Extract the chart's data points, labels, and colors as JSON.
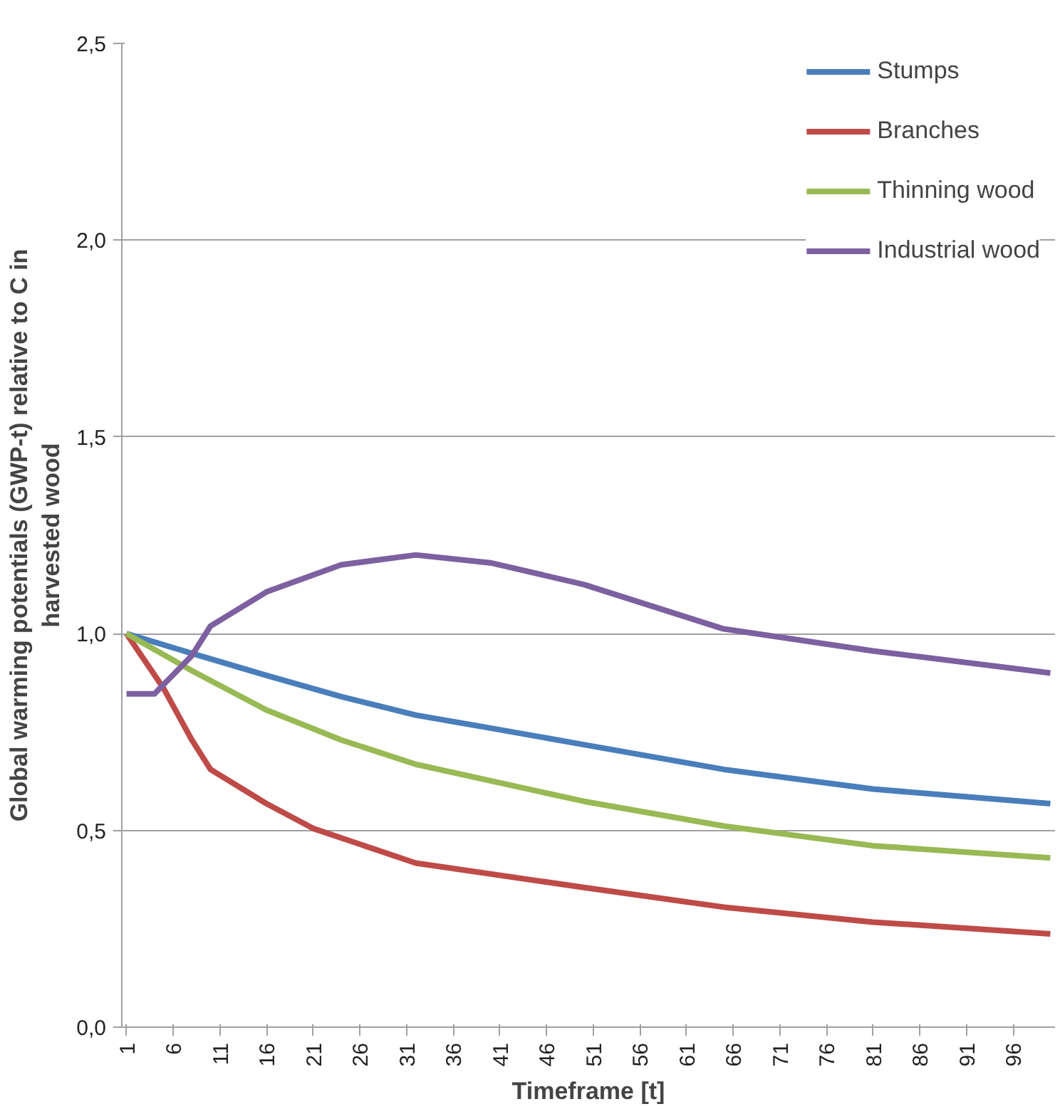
{
  "chart_data": {
    "type": "line",
    "xlabel": "Timeframe [t]",
    "ylabel": "Global warming potentials (GWP-t) relative to C in harvested wood",
    "xlim": [
      0.5,
      100.5
    ],
    "xticks": [
      1,
      6,
      11,
      16,
      21,
      26,
      31,
      36,
      41,
      46,
      51,
      56,
      61,
      66,
      71,
      76,
      81,
      86,
      91,
      96
    ],
    "ylim": [
      0,
      2.5
    ],
    "yticks": [
      {
        "value": 0,
        "label": "0,0"
      },
      {
        "value": 0.5,
        "label": "0,5"
      },
      {
        "value": 1,
        "label": "1,0"
      },
      {
        "value": 1.5,
        "label": "1,5"
      },
      {
        "value": 2,
        "label": "2,0"
      },
      {
        "value": 2.5,
        "label": "2,5"
      }
    ],
    "grid": "y",
    "legend": "top right",
    "line_style": "solid",
    "marker": "none",
    "series": [
      {
        "name": "Stumps",
        "color": "#4a7ebb",
        "x": [
          1,
          8,
          16,
          24,
          32,
          40,
          50,
          65,
          81,
          100
        ],
        "values": [
          1.0,
          0.95,
          0.894,
          0.84,
          0.793,
          0.76,
          0.718,
          0.655,
          0.605,
          0.568
        ]
      },
      {
        "name": "Branches",
        "color": "#be4b48",
        "x": [
          1,
          5,
          8,
          10,
          16,
          21,
          32,
          50,
          65,
          81,
          100
        ],
        "values": [
          1.0,
          0.86,
          0.73,
          0.655,
          0.568,
          0.505,
          0.417,
          0.355,
          0.305,
          0.267,
          0.237
        ]
      },
      {
        "name": "Thinning wood",
        "color": "#98b954",
        "x": [
          1,
          8,
          16,
          24,
          32,
          50,
          65,
          81,
          100
        ],
        "values": [
          1.0,
          0.906,
          0.806,
          0.73,
          0.668,
          0.574,
          0.511,
          0.461,
          0.43
        ]
      },
      {
        "name": "Industrial wood",
        "color": "#7d60a0",
        "x": [
          1,
          4,
          8,
          10,
          16,
          24,
          32,
          40,
          50,
          65,
          81,
          100
        ],
        "values": [
          0.847,
          0.847,
          0.944,
          1.019,
          1.106,
          1.175,
          1.2,
          1.18,
          1.125,
          1.012,
          0.956,
          0.9
        ]
      }
    ]
  }
}
